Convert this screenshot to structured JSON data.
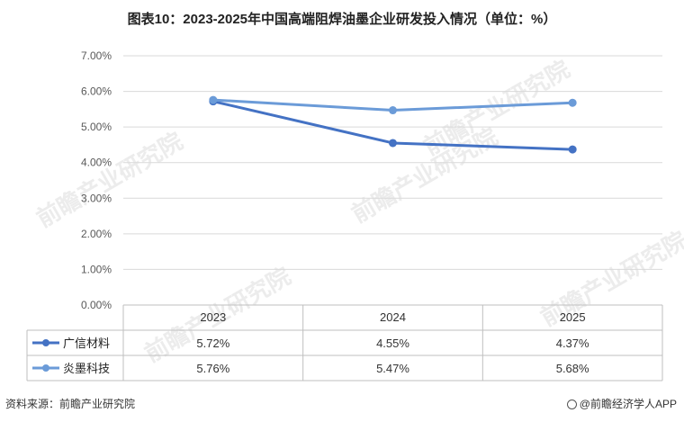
{
  "title": "图表10：2023-2025年中国高端阻焊油墨企业研发投入情况（单位：%）",
  "watermark": "前瞻产业研究院",
  "footer": {
    "source": "资料来源：前瞻产业研究院",
    "brand": "@前瞻经济学人APP"
  },
  "colors": {
    "series_1": "#4472c4",
    "series_2": "#6b9bd8",
    "grid": "#d9d9d9",
    "table_border": "#bfbfbf"
  },
  "chart_data": {
    "type": "line",
    "title": "图表10：2023-2025年中国高端阻焊油墨企业研发投入情况（单位：%）",
    "categories": [
      "2023",
      "2024",
      "2025"
    ],
    "series": [
      {
        "name": "广信材料",
        "values": [
          5.72,
          4.55,
          4.37
        ],
        "labels": [
          "5.72%",
          "4.55%",
          "4.37%"
        ]
      },
      {
        "name": "炎墨科技",
        "values": [
          5.76,
          5.47,
          5.68
        ],
        "labels": [
          "5.76%",
          "5.47%",
          "5.68%"
        ]
      }
    ],
    "ylim": [
      0,
      7
    ],
    "yticks": [
      "0.00%",
      "1.00%",
      "2.00%",
      "3.00%",
      "4.00%",
      "5.00%",
      "6.00%",
      "7.00%"
    ],
    "grid": true,
    "legend": "data-table-below"
  }
}
